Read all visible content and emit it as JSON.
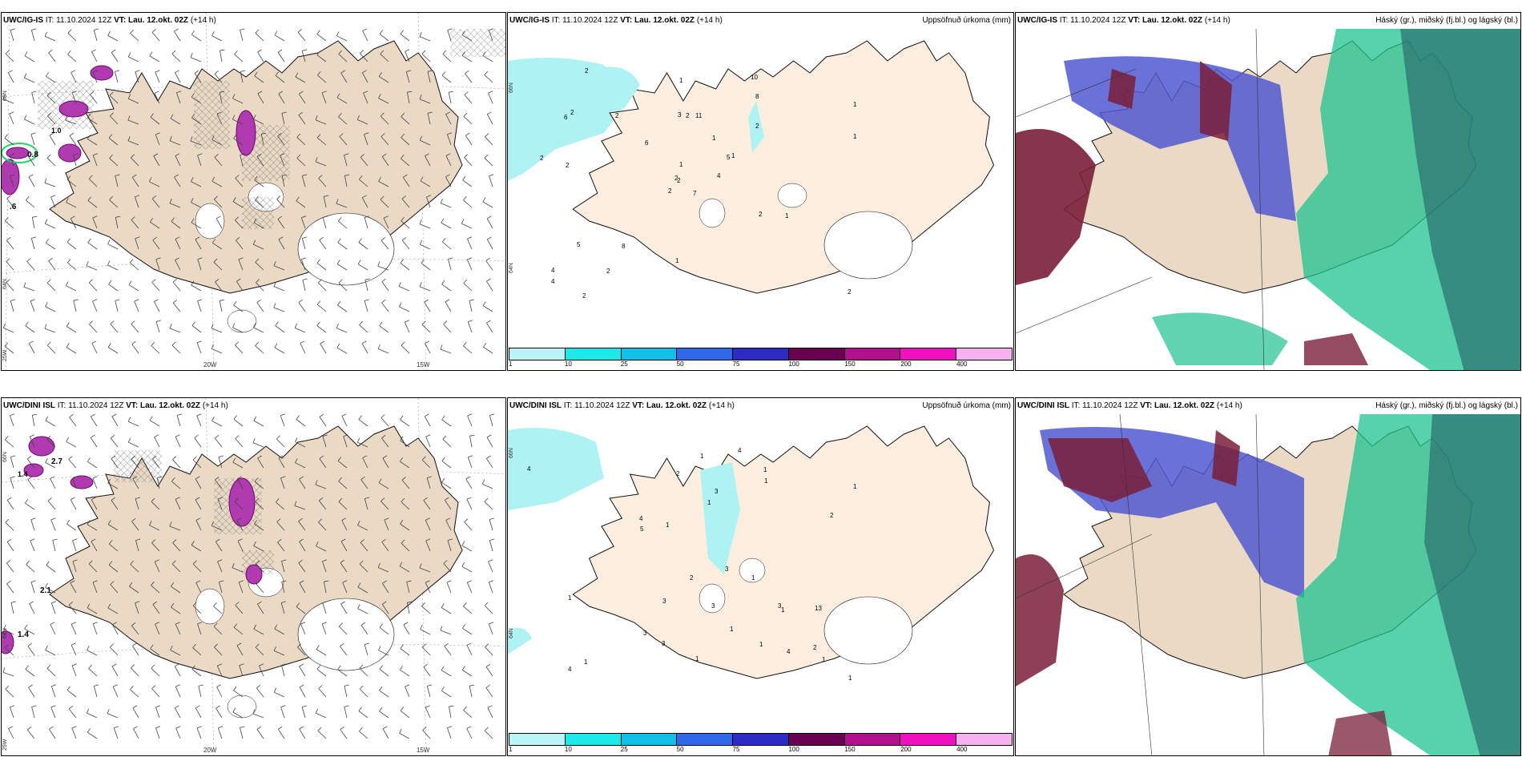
{
  "colors": {
    "land": "#ead9c4",
    "land_light": "#fdeee0",
    "precip_light": "#aef2f4",
    "hatch": "#666666",
    "purple": "#b03ab0",
    "cloud_high": "#5058d0",
    "cloud_mid": "#1fc38f",
    "cloud_low": "#7a1f3a"
  },
  "rows": [
    {
      "model": "UWC/IG-IS",
      "it_label": "IT:",
      "it_value": "11.10.2024 12Z",
      "vt_label": "VT:",
      "vt_value": "Lau. 12.okt. 02Z",
      "lead": "(+14 h)"
    },
    {
      "model": "UWC/DINI ISL",
      "it_label": "IT:",
      "it_value": "11.10.2024 12Z",
      "vt_label": "VT:",
      "vt_value": "Lau. 12.okt. 02Z",
      "lead": "(+14 h)"
    }
  ],
  "precip_title": "Uppsöfnuð úrkoma (mm)",
  "cloud_title": "Háský (gr.), miðský (fj.bl.) og lágský (bl.)",
  "lon_labels": [
    "20W",
    "15W"
  ],
  "lat_labels": [
    "66N",
    "64N",
    "25W"
  ],
  "precip_lat_labels": [
    "66N",
    "64N"
  ],
  "colorbar": {
    "ticks": [
      "1",
      "10",
      "25",
      "50",
      "75",
      "100",
      "150",
      "200",
      "400"
    ],
    "colors": [
      "#b9f5f7",
      "#1de8ea",
      "#12bfe6",
      "#2f68e8",
      "#2c2cc4",
      "#6a0050",
      "#b0108e",
      "#f010c0",
      "#f7b0f0"
    ]
  },
  "wind_panel_labels": {
    "top": [
      "0.8",
      "1.0",
      ".6"
    ],
    "bottom": [
      "2.7",
      "1.4",
      "2.1",
      "1.4"
    ]
  },
  "precip_numbers": {
    "top": [
      "7",
      "6",
      "2",
      "4",
      "5",
      "8",
      "10",
      "11",
      "8",
      "4",
      "2",
      "2",
      "2",
      "1",
      "2",
      "2",
      "2",
      "3",
      "1",
      "5",
      "6",
      "4",
      "2",
      "2",
      "1",
      "1",
      "2",
      "1",
      "2",
      "2",
      "1",
      "2",
      "1",
      "1",
      "2"
    ],
    "bottom": [
      "4",
      "13",
      "3",
      "3",
      "2",
      "4",
      "2",
      "1",
      "4",
      "3",
      "1",
      "5",
      "3",
      "1",
      "1",
      "4",
      "3",
      "1",
      "2",
      "1",
      "4",
      "1",
      "1",
      "1",
      "1",
      "1",
      "1",
      "1",
      "2",
      "1",
      "1",
      "3",
      "3"
    ]
  }
}
